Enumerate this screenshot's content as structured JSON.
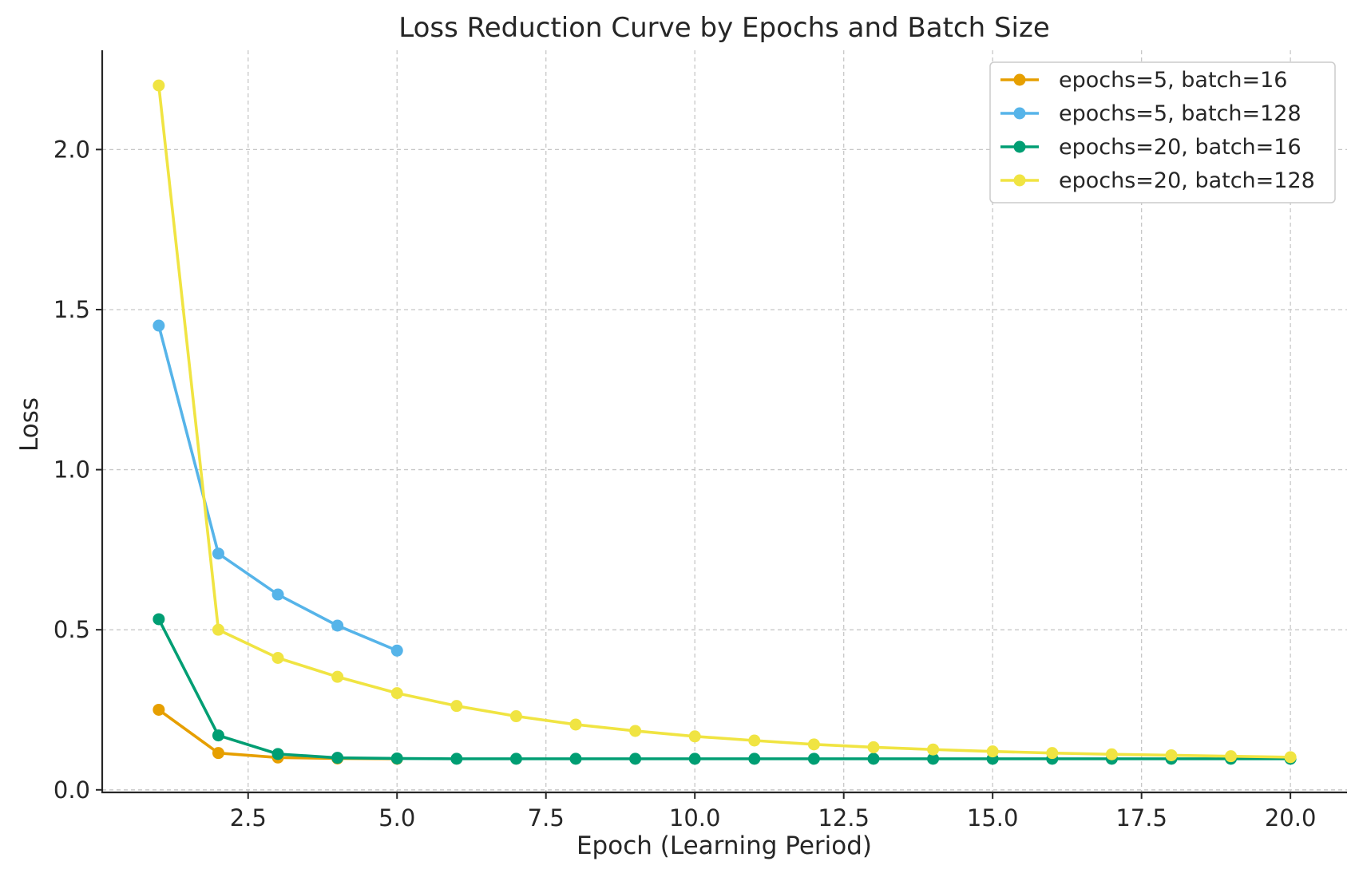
{
  "chart_data": {
    "type": "line",
    "title": "Loss Reduction Curve by Epochs and Batch Size",
    "xlabel": "Epoch (Learning Period)",
    "ylabel": "Loss",
    "xlim": [
      0.05,
      20.95
    ],
    "ylim": [
      -0.008,
      2.31
    ],
    "xticks": [
      2.5,
      5.0,
      7.5,
      10.0,
      12.5,
      15.0,
      17.5,
      20.0
    ],
    "xtick_labels": [
      "2.5",
      "5.0",
      "7.5",
      "10.0",
      "12.5",
      "15.0",
      "17.5",
      "20.0"
    ],
    "yticks": [
      0.0,
      0.5,
      1.0,
      1.5,
      2.0
    ],
    "ytick_labels": [
      "0.0",
      "0.5",
      "1.0",
      "1.5",
      "2.0"
    ],
    "grid": true,
    "legend_position": "top-right",
    "series": [
      {
        "name": "epochs=5, batch=16",
        "color": "#E69F00",
        "x": [
          1,
          2,
          3,
          4,
          5
        ],
        "values": [
          0.25,
          0.115,
          0.101,
          0.098,
          0.097
        ]
      },
      {
        "name": "epochs=5, batch=128",
        "color": "#56B4E9",
        "x": [
          1,
          2,
          3,
          4,
          5
        ],
        "values": [
          1.45,
          0.738,
          0.61,
          0.513,
          0.435
        ]
      },
      {
        "name": "epochs=20, batch=16",
        "color": "#009E73",
        "x": [
          1,
          2,
          3,
          4,
          5,
          6,
          7,
          8,
          9,
          10,
          11,
          12,
          13,
          14,
          15,
          16,
          17,
          18,
          19,
          20
        ],
        "values": [
          0.533,
          0.17,
          0.112,
          0.1,
          0.098,
          0.097,
          0.097,
          0.097,
          0.097,
          0.097,
          0.097,
          0.097,
          0.097,
          0.097,
          0.097,
          0.097,
          0.097,
          0.097,
          0.097,
          0.097
        ]
      },
      {
        "name": "epochs=20, batch=128",
        "color": "#F0E442",
        "x": [
          1,
          2,
          3,
          4,
          5,
          6,
          7,
          8,
          9,
          10,
          11,
          12,
          13,
          14,
          15,
          16,
          17,
          18,
          19,
          20
        ],
        "values": [
          2.2,
          0.5,
          0.412,
          0.353,
          0.302,
          0.262,
          0.23,
          0.204,
          0.184,
          0.167,
          0.154,
          0.142,
          0.133,
          0.126,
          0.12,
          0.115,
          0.111,
          0.108,
          0.105,
          0.102
        ]
      }
    ]
  }
}
